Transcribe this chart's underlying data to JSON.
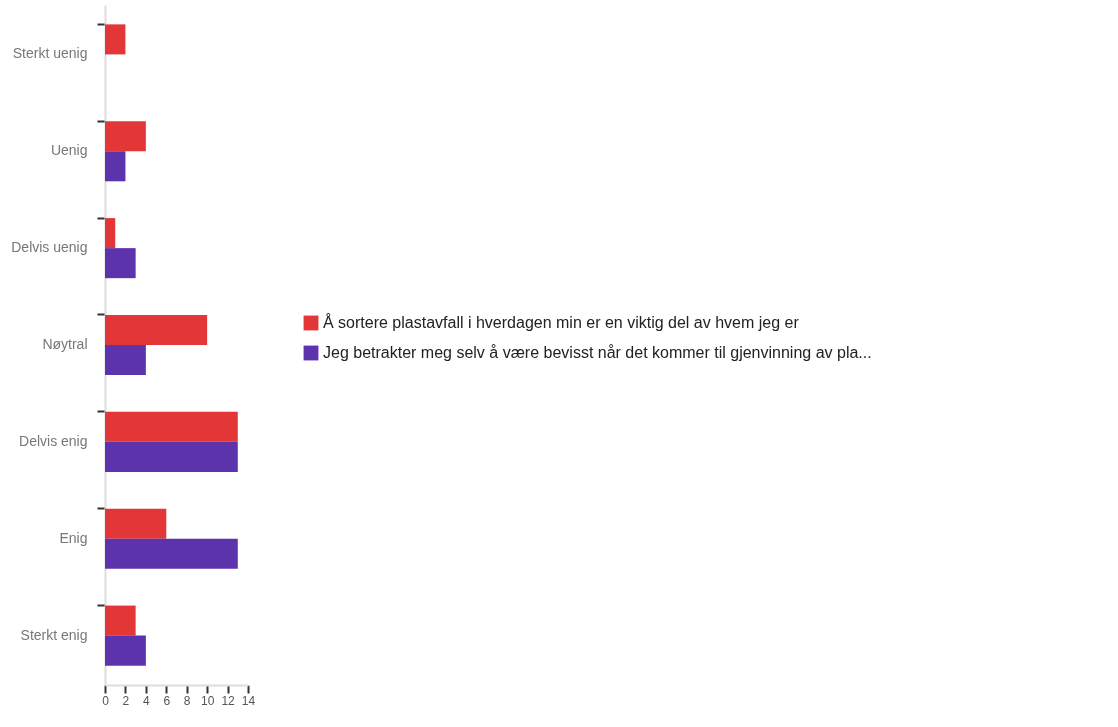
{
  "chart_data": {
    "type": "bar",
    "orientation": "horizontal",
    "categories": [
      "Sterkt uenig",
      "Uenig",
      "Delvis uenig",
      "Nøytral",
      "Delvis enig",
      "Enig",
      "Sterkt enig"
    ],
    "series": [
      {
        "name": "Å sortere plastavfall i hverdagen min er en viktig del av hvem jeg er",
        "color": "#e33636",
        "values": [
          2,
          4,
          1,
          10,
          13,
          6,
          3
        ]
      },
      {
        "name": "Jeg betrakter meg selv å være bevisst når det kommer til gjenvinning av pla...",
        "color": "#5c33ad",
        "values": [
          0,
          2,
          3,
          4,
          13,
          13,
          4
        ]
      }
    ],
    "xlim": [
      0,
      14
    ],
    "xticks": [
      0,
      2,
      4,
      6,
      8,
      10,
      12,
      14
    ],
    "grid": false,
    "legend": "right"
  }
}
